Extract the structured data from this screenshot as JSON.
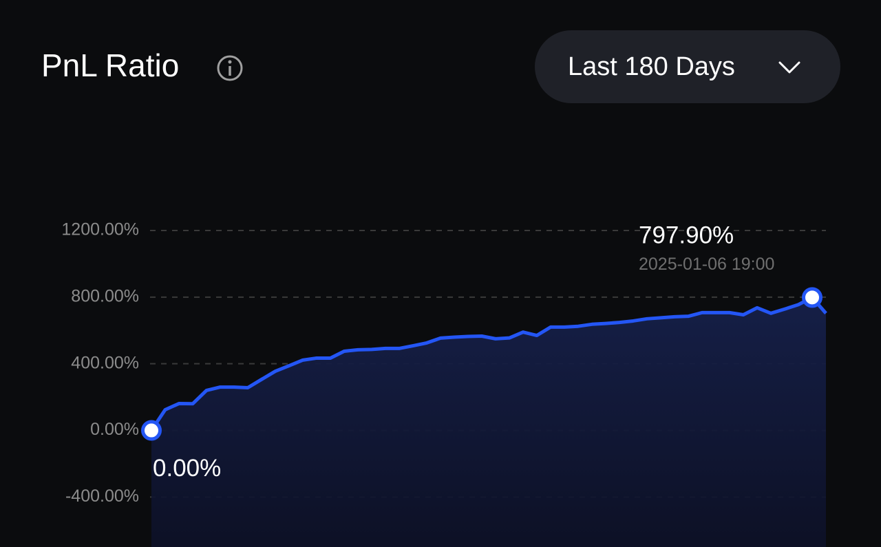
{
  "title": "PnL Ratio",
  "range_selector": "Last 180 Days",
  "chart_data": {
    "type": "line",
    "series": [
      {
        "color": "#2456f5",
        "values": [
          0,
          124,
          161,
          160,
          240,
          260,
          260,
          256,
          306,
          355,
          388,
          422,
          434,
          434,
          475,
          484,
          486,
          492,
          492,
          508,
          525,
          554,
          560,
          564,
          566,
          550,
          555,
          590,
          570,
          620,
          620,
          625,
          637,
          642,
          648,
          657,
          670,
          676,
          682,
          685,
          707,
          707,
          707,
          694,
          736,
          703,
          728,
          755,
          797.9,
          703
        ]
      }
    ],
    "ylim": [
      -700,
      1200
    ],
    "yticks": [
      {
        "value": -400,
        "label": "-400.00%"
      },
      {
        "value": 0,
        "label": "0.00%"
      },
      {
        "value": 400,
        "label": "400.00%"
      },
      {
        "value": 800,
        "label": "800.00%"
      },
      {
        "value": 1200,
        "label": "1200.00%"
      }
    ],
    "grid": true,
    "annotations": [
      {
        "text": "797.90%",
        "value": 797.9,
        "date": "2025-01-06 19:00"
      },
      {
        "text": "0.00%",
        "value": 0
      }
    ]
  }
}
